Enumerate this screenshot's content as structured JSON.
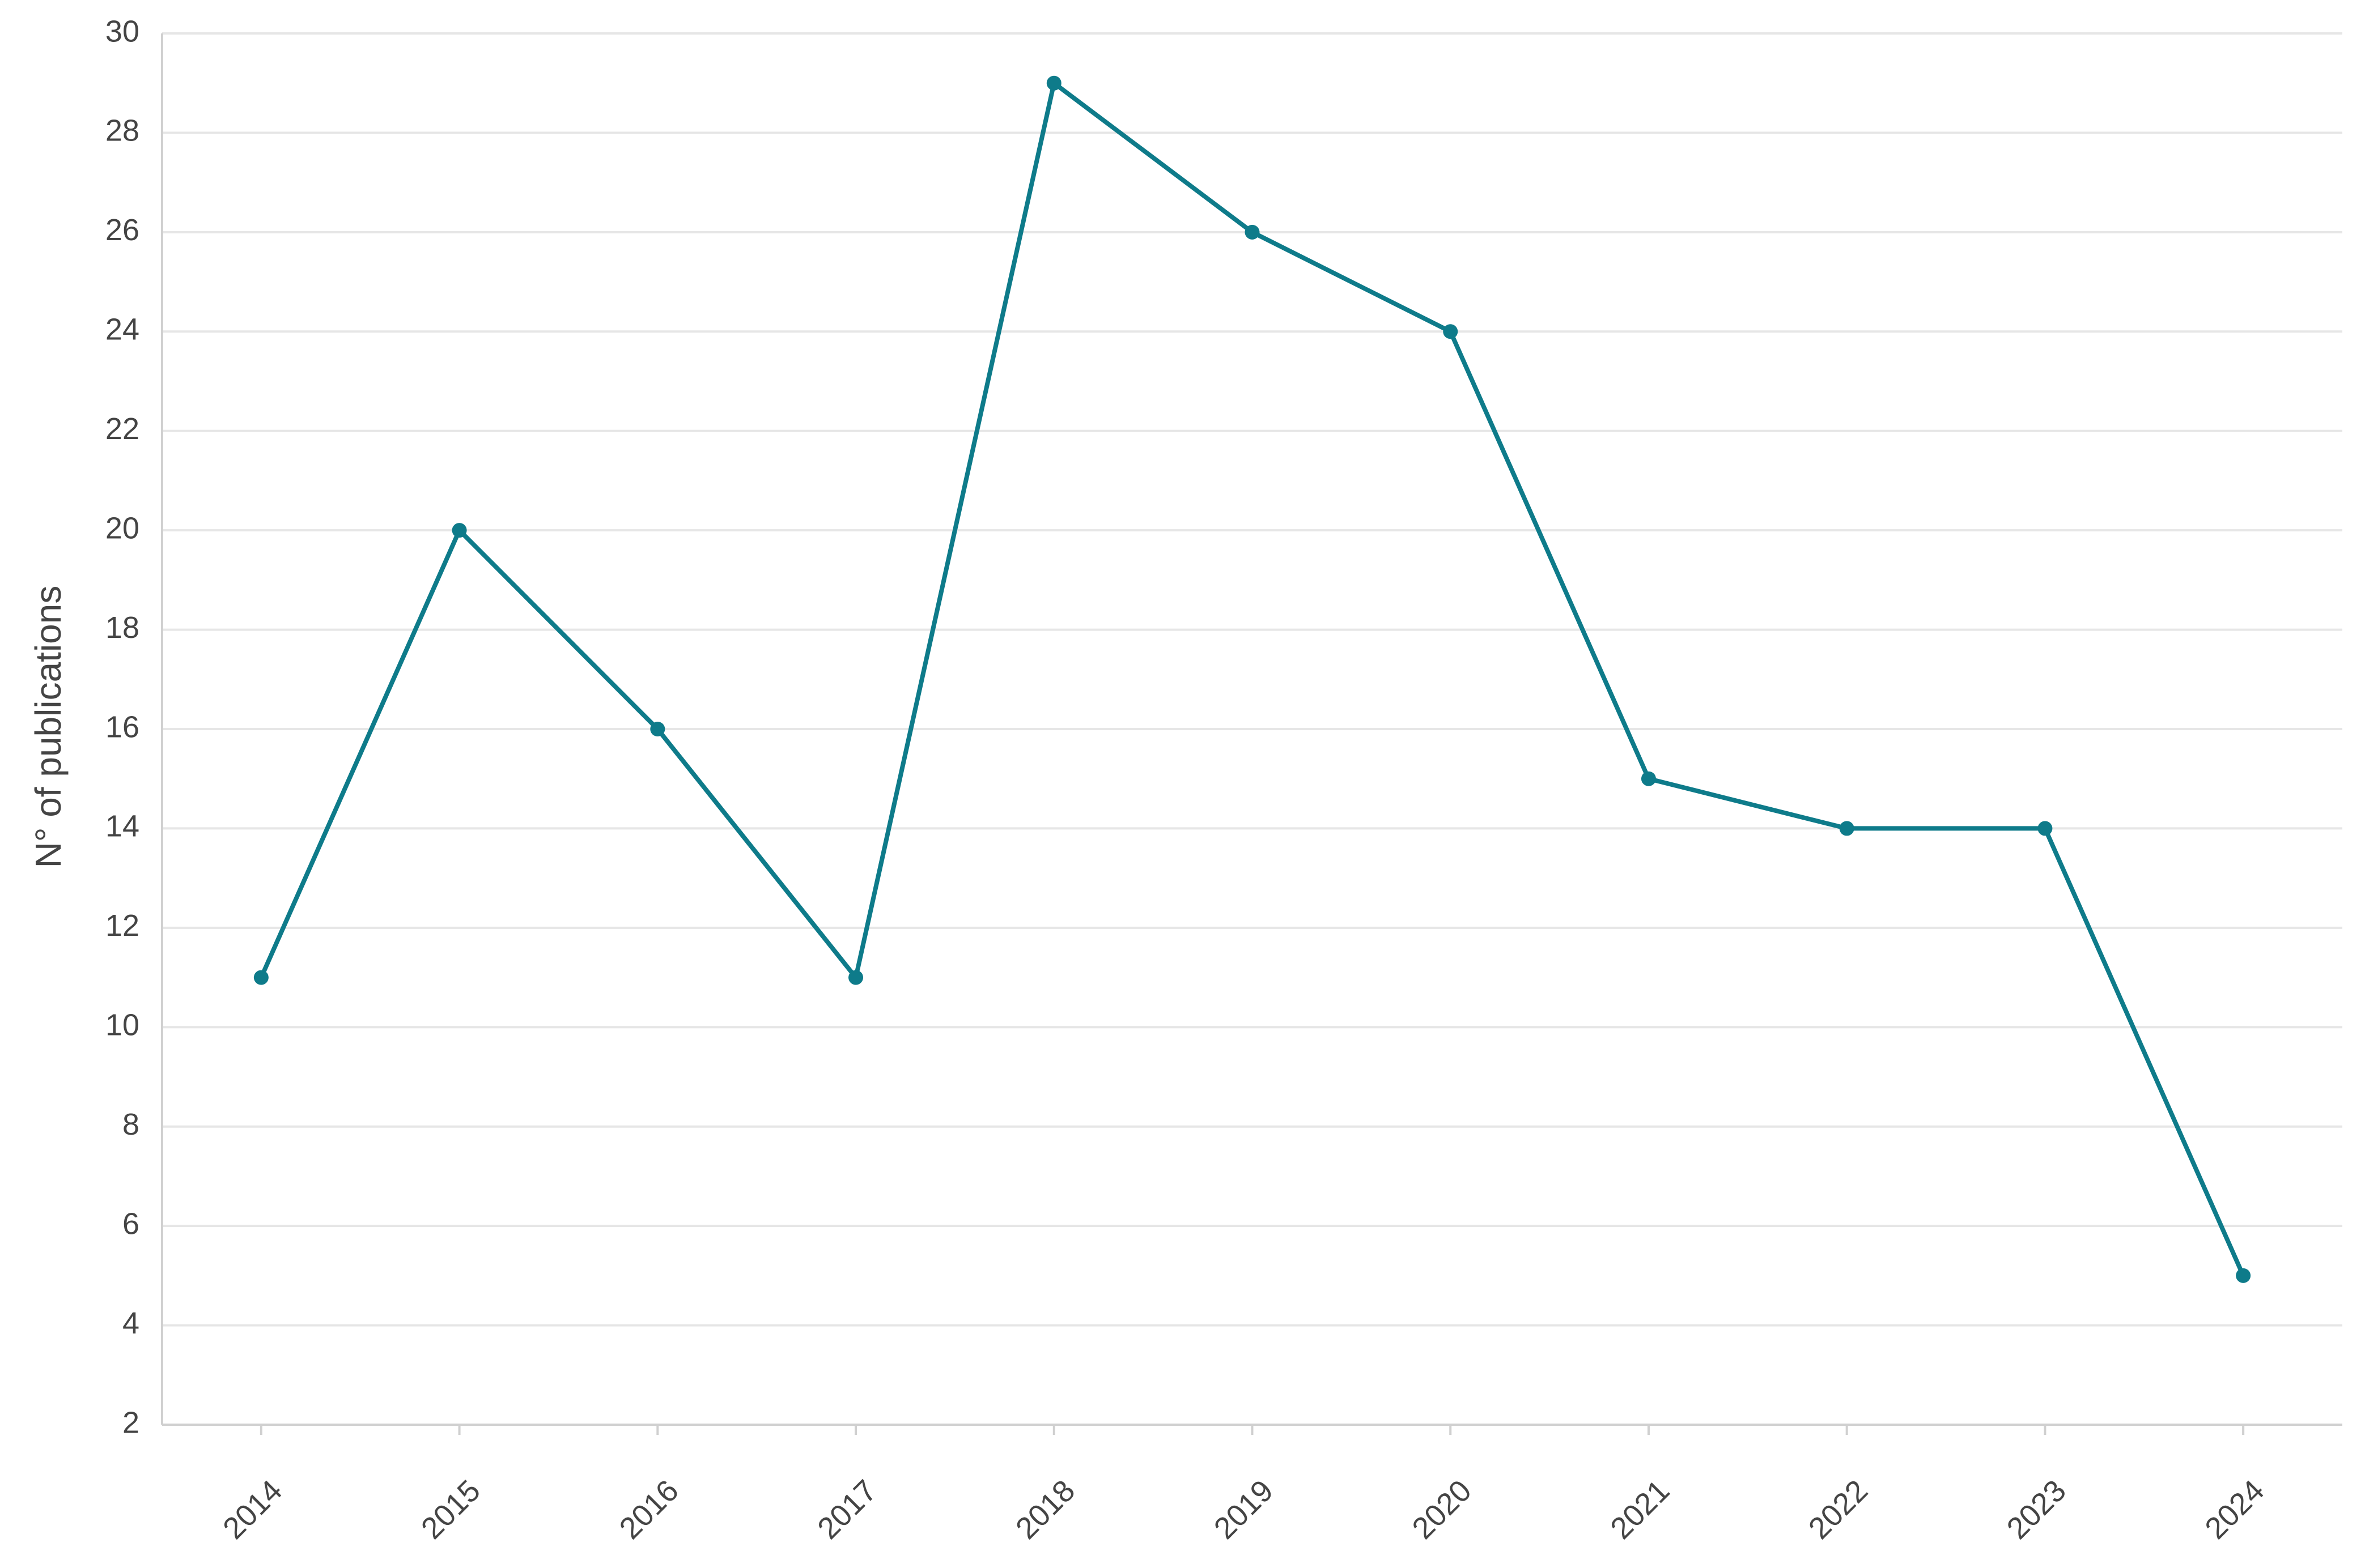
{
  "chart_data": {
    "type": "line",
    "y_label": "N° of publications",
    "categories": [
      "2014",
      "2015",
      "2016",
      "2017",
      "2018",
      "2019",
      "2020",
      "2021",
      "2022",
      "2023",
      "2024"
    ],
    "series": [
      {
        "color": "#0e7b8a",
        "values": [
          11,
          20,
          16,
          11,
          29,
          26,
          24,
          15,
          14,
          14,
          5
        ]
      }
    ],
    "ylim": [
      2,
      30
    ],
    "yticks": [
      2,
      4,
      6,
      8,
      10,
      12,
      14,
      16,
      18,
      20,
      22,
      24,
      26,
      28,
      30
    ],
    "grid": true
  }
}
